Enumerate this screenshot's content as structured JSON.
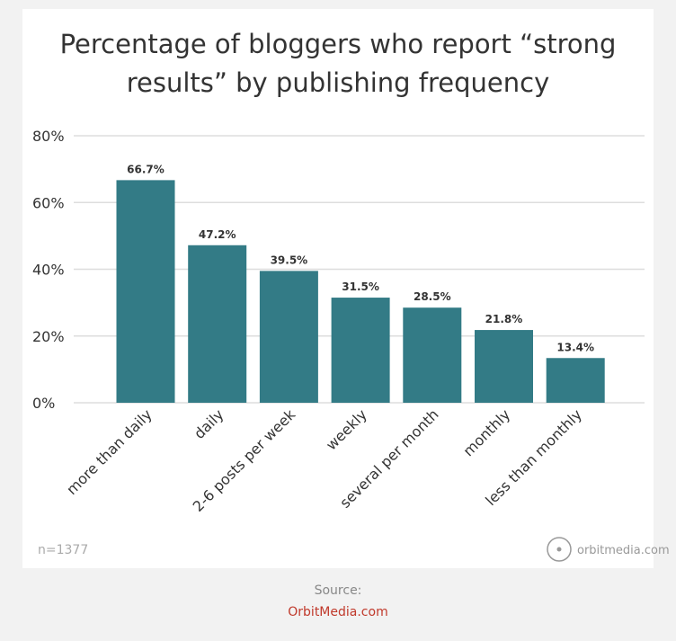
{
  "chart_data": {
    "type": "bar",
    "title": "Percentage of bloggers who report “strong results” by publishing frequency",
    "categories": [
      "more than daily",
      "daily",
      "2-6 posts per week",
      "weekly",
      "several per month",
      "monthly",
      "less than monthly"
    ],
    "values": [
      66.7,
      47.2,
      39.5,
      31.5,
      28.5,
      21.8,
      13.4
    ],
    "value_labels": [
      "66.7%",
      "47.2%",
      "39.5%",
      "31.5%",
      "28.5%",
      "21.8%",
      "13.4%"
    ],
    "color": "#337b86",
    "ylim": [
      0,
      80
    ],
    "yticks": [
      {
        "value": 0,
        "label": "0%"
      },
      {
        "value": 20,
        "label": "20%"
      },
      {
        "value": 40,
        "label": "40%"
      },
      {
        "value": 60,
        "label": "60%"
      },
      {
        "value": 80,
        "label": "80%"
      }
    ],
    "grid": true,
    "note": "n=1377",
    "watermark": "orbitmedia.com"
  },
  "footer": {
    "label": "Source:",
    "link": "OrbitMedia.com"
  }
}
